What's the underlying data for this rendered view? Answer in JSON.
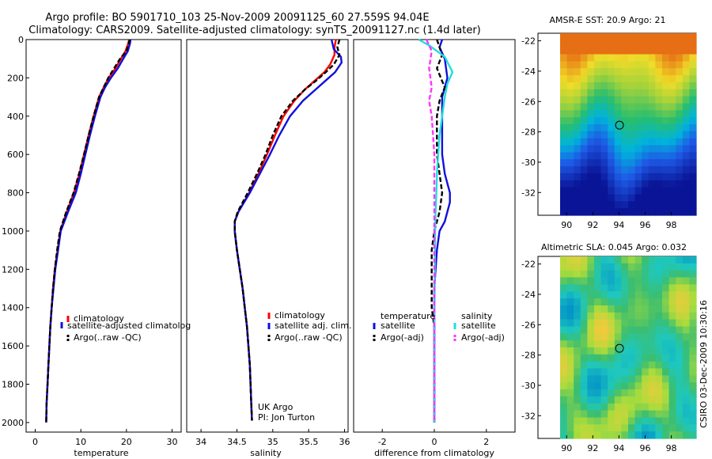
{
  "header": {
    "line1": "Argo profile: BO 5901710_103 25-Nov-2009 20091125_60 27.559S 94.04E",
    "line2": "Climatology: CARS2009. Satellite-adjusted climatology: synTS_20091127.nc (1.4d later)"
  },
  "side_credit": "CSIRO 03-Dec-2009 10:30:16",
  "colors": {
    "climatology": "#ff0000",
    "satellite": "#1010dd",
    "argo": "#000000",
    "argo_adj_sal": "#ff33ff",
    "satellite_sal": "#22dddd",
    "site_marker": "#000000"
  },
  "chart_data": [
    {
      "id": "temperature",
      "type": "line",
      "xlabel": "temperature",
      "ylabel": "",
      "xlim": [
        -2,
        32
      ],
      "ylim": [
        2050,
        0
      ],
      "y_reversed": true,
      "xticks": [
        0,
        10,
        20,
        30
      ],
      "yticks": [
        0,
        200,
        400,
        600,
        800,
        1000,
        1200,
        1400,
        1600,
        1800,
        2000
      ],
      "legend": [
        "climatology",
        "satellite-adjusted climatolog",
        "Argo(..raw -QC)"
      ],
      "series": [
        {
          "name": "climatology",
          "color": "#ff0000",
          "dash": "",
          "points": [
            [
              20.6,
              0
            ],
            [
              20.4,
              20
            ],
            [
              19.8,
              60
            ],
            [
              18.8,
              100
            ],
            [
              17.6,
              150
            ],
            [
              16.1,
              200
            ],
            [
              15,
              250
            ],
            [
              14,
              300
            ],
            [
              12.8,
              400
            ],
            [
              11.7,
              500
            ],
            [
              10.7,
              600
            ],
            [
              9.7,
              700
            ],
            [
              8.5,
              800
            ],
            [
              6.9,
              900
            ],
            [
              5.5,
              1000
            ],
            [
              4.9,
              1100
            ],
            [
              4.3,
              1200
            ],
            [
              3.9,
              1300
            ],
            [
              3.6,
              1400
            ],
            [
              3.3,
              1500
            ],
            [
              3.1,
              1600
            ],
            [
              2.9,
              1700
            ],
            [
              2.7,
              1800
            ],
            [
              2.5,
              1900
            ],
            [
              2.4,
              2000
            ]
          ]
        },
        {
          "name": "satellite-adjusted climatolog",
          "color": "#1010dd",
          "dash": "",
          "points": [
            [
              20.9,
              0
            ],
            [
              20.8,
              20
            ],
            [
              20.3,
              60
            ],
            [
              19.3,
              100
            ],
            [
              18.1,
              150
            ],
            [
              16.6,
              200
            ],
            [
              15.3,
              250
            ],
            [
              14.3,
              300
            ],
            [
              13.1,
              400
            ],
            [
              12,
              500
            ],
            [
              11,
              600
            ],
            [
              10,
              700
            ],
            [
              8.9,
              800
            ],
            [
              7.2,
              900
            ],
            [
              5.6,
              1000
            ],
            [
              5,
              1100
            ],
            [
              4.4,
              1200
            ],
            [
              4,
              1300
            ],
            [
              3.6,
              1400
            ],
            [
              3.3,
              1500
            ],
            [
              3.1,
              1600
            ],
            [
              2.9,
              1700
            ],
            [
              2.7,
              1800
            ],
            [
              2.5,
              1900
            ],
            [
              2.4,
              2000
            ]
          ]
        },
        {
          "name": "Argo(..raw -QC)",
          "color": "#000000",
          "dash": "6,3",
          "points": [
            [
              20.7,
              0
            ],
            [
              20.5,
              20
            ],
            [
              20,
              60
            ],
            [
              18.6,
              100
            ],
            [
              17.3,
              150
            ],
            [
              16,
              200
            ],
            [
              15,
              250
            ],
            [
              14,
              300
            ],
            [
              12.8,
              400
            ],
            [
              11.7,
              500
            ],
            [
              10.7,
              600
            ],
            [
              9.6,
              700
            ],
            [
              8.4,
              800
            ],
            [
              6.8,
              900
            ],
            [
              5.4,
              1000
            ],
            [
              4.8,
              1100
            ],
            [
              4.3,
              1200
            ],
            [
              3.9,
              1300
            ],
            [
              3.6,
              1400
            ],
            [
              3.3,
              1500
            ],
            [
              3.1,
              1600
            ],
            [
              2.9,
              1700
            ],
            [
              2.7,
              1800
            ],
            [
              2.5,
              1900
            ],
            [
              2.4,
              2000
            ]
          ]
        }
      ]
    },
    {
      "id": "salinity",
      "type": "line",
      "xlabel": "salinity",
      "xlim": [
        33.8,
        36.05
      ],
      "ylim": [
        2050,
        0
      ],
      "y_reversed": true,
      "xticks": [
        34,
        34.5,
        35,
        35.5,
        36
      ],
      "yticks": [],
      "legend": [
        "climatology",
        "satellite adj. clim.",
        "Argo(..raw -QC)"
      ],
      "annotation": [
        "UK Argo",
        "PI: Jon Turton"
      ],
      "series": [
        {
          "name": "climatology",
          "color": "#ff0000",
          "dash": "",
          "points": [
            [
              35.88,
              0
            ],
            [
              35.86,
              40
            ],
            [
              35.86,
              80
            ],
            [
              35.8,
              130
            ],
            [
              35.72,
              170
            ],
            [
              35.6,
              210
            ],
            [
              35.45,
              260
            ],
            [
              35.3,
              320
            ],
            [
              35.15,
              400
            ],
            [
              35.03,
              500
            ],
            [
              34.92,
              600
            ],
            [
              34.8,
              700
            ],
            [
              34.67,
              800
            ],
            [
              34.52,
              900
            ],
            [
              34.47,
              950
            ],
            [
              34.47,
              1000
            ],
            [
              34.5,
              1100
            ],
            [
              34.54,
              1200
            ],
            [
              34.58,
              1300
            ],
            [
              34.61,
              1400
            ],
            [
              34.64,
              1500
            ],
            [
              34.66,
              1600
            ],
            [
              34.68,
              1700
            ],
            [
              34.69,
              1800
            ],
            [
              34.7,
              1900
            ],
            [
              34.71,
              1990
            ]
          ]
        },
        {
          "name": "satellite adj. clim.",
          "color": "#1010dd",
          "dash": "",
          "points": [
            [
              35.82,
              0
            ],
            [
              35.85,
              50
            ],
            [
              35.95,
              90
            ],
            [
              35.96,
              120
            ],
            [
              35.87,
              170
            ],
            [
              35.75,
              210
            ],
            [
              35.6,
              260
            ],
            [
              35.42,
              320
            ],
            [
              35.24,
              400
            ],
            [
              35.09,
              500
            ],
            [
              34.96,
              600
            ],
            [
              34.82,
              700
            ],
            [
              34.68,
              800
            ],
            [
              34.52,
              900
            ],
            [
              34.47,
              950
            ],
            [
              34.47,
              1000
            ],
            [
              34.5,
              1100
            ],
            [
              34.54,
              1200
            ],
            [
              34.58,
              1300
            ],
            [
              34.61,
              1400
            ],
            [
              34.64,
              1500
            ],
            [
              34.66,
              1600
            ],
            [
              34.68,
              1700
            ],
            [
              34.69,
              1800
            ],
            [
              34.7,
              1900
            ],
            [
              34.71,
              1990
            ]
          ]
        },
        {
          "name": "Argo(..raw -QC)",
          "color": "#000000",
          "dash": "6,3",
          "points": [
            [
              35.93,
              0
            ],
            [
              35.9,
              40
            ],
            [
              35.93,
              80
            ],
            [
              35.85,
              130
            ],
            [
              35.74,
              170
            ],
            [
              35.62,
              210
            ],
            [
              35.45,
              260
            ],
            [
              35.28,
              320
            ],
            [
              35.12,
              400
            ],
            [
              35,
              500
            ],
            [
              34.9,
              600
            ],
            [
              34.78,
              700
            ],
            [
              34.65,
              800
            ],
            [
              34.51,
              900
            ],
            [
              34.47,
              950
            ],
            [
              34.47,
              1000
            ],
            [
              34.5,
              1100
            ],
            [
              34.54,
              1200
            ],
            [
              34.58,
              1300
            ],
            [
              34.61,
              1400
            ],
            [
              34.64,
              1500
            ],
            [
              34.66,
              1600
            ],
            [
              34.68,
              1700
            ],
            [
              34.69,
              1800
            ],
            [
              34.7,
              1900
            ],
            [
              34.71,
              1990
            ]
          ]
        }
      ]
    },
    {
      "id": "difference",
      "type": "line",
      "xlabel": "difference from climatology",
      "xlim": [
        -3.1,
        3.1
      ],
      "ylim": [
        2050,
        0
      ],
      "y_reversed": true,
      "xticks": [
        -2,
        0,
        2
      ],
      "yticks": [],
      "legend_heads": [
        "temperature",
        "salinity"
      ],
      "legend": [
        "satellite",
        "Argo(-adj)",
        "satellite",
        "Argo(-adj)"
      ],
      "series": [
        {
          "name": "satellite",
          "group": "temperature",
          "color": "#1010dd",
          "dash": "",
          "points": [
            [
              0.3,
              0
            ],
            [
              0.2,
              40
            ],
            [
              0.4,
              100
            ],
            [
              0.5,
              200
            ],
            [
              0.3,
              300
            ],
            [
              0.3,
              400
            ],
            [
              0.3,
              500
            ],
            [
              0.3,
              600
            ],
            [
              0.4,
              700
            ],
            [
              0.6,
              800
            ],
            [
              0.6,
              850
            ],
            [
              0.4,
              950
            ],
            [
              0.2,
              1000
            ],
            [
              0.1,
              1100
            ],
            [
              0.05,
              1200
            ],
            [
              0,
              1300
            ],
            [
              0,
              1500
            ],
            [
              0,
              2000
            ]
          ]
        },
        {
          "name": "Argo(-adj)",
          "group": "temperature",
          "color": "#000000",
          "dash": "6,3",
          "points": [
            [
              0.1,
              0
            ],
            [
              0.3,
              80
            ],
            [
              0.1,
              150
            ],
            [
              0.4,
              250
            ],
            [
              0.2,
              320
            ],
            [
              0.1,
              400
            ],
            [
              0.1,
              500
            ],
            [
              0.1,
              600
            ],
            [
              0.2,
              700
            ],
            [
              0.3,
              800
            ],
            [
              0.2,
              900
            ],
            [
              0,
              1000
            ],
            [
              -0.1,
              1100
            ],
            [
              -0.1,
              1200
            ],
            [
              -0.1,
              1400
            ],
            [
              0,
              1500
            ],
            [
              0,
              2000
            ]
          ]
        },
        {
          "name": "satellite",
          "group": "salinity",
          "color": "#22dddd",
          "dash": "",
          "points": [
            [
              -0.6,
              0
            ],
            [
              -0.2,
              30
            ],
            [
              0.4,
              90
            ],
            [
              0.7,
              170
            ],
            [
              0.5,
              230
            ],
            [
              0.4,
              300
            ],
            [
              0.3,
              400
            ],
            [
              0.2,
              500
            ],
            [
              0.15,
              600
            ],
            [
              0.1,
              700
            ],
            [
              0.08,
              800
            ],
            [
              0.05,
              900
            ],
            [
              0.03,
              1000
            ],
            [
              0.02,
              1200
            ],
            [
              0,
              1500
            ],
            [
              0,
              2000
            ]
          ]
        },
        {
          "name": "Argo(-adj)",
          "group": "salinity",
          "color": "#ff33ff",
          "dash": "6,3",
          "points": [
            [
              -0.3,
              0
            ],
            [
              -0.1,
              60
            ],
            [
              -0.2,
              150
            ],
            [
              -0.1,
              250
            ],
            [
              -0.2,
              320
            ],
            [
              -0.1,
              400
            ],
            [
              -0.05,
              500
            ],
            [
              0,
              600
            ],
            [
              0,
              800
            ],
            [
              0,
              1000
            ],
            [
              0,
              1200
            ],
            [
              0,
              1500
            ],
            [
              0,
              2000
            ]
          ]
        }
      ]
    },
    {
      "id": "sst_map",
      "type": "heatmap",
      "title": "AMSR-E SST: 20.9 Argo: 21",
      "xlim": [
        89.5,
        99.9
      ],
      "ylim": [
        -33.5,
        -21.5
      ],
      "xticks": [
        90,
        92,
        94,
        96,
        98
      ],
      "yticks": [
        -22,
        -24,
        -26,
        -28,
        -30,
        -32
      ],
      "marker": [
        94.04,
        -27.559
      ]
    },
    {
      "id": "sla_map",
      "type": "heatmap",
      "title": "Altimetric SLA: 0.045 Argo: 0.032",
      "xlim": [
        89.5,
        99.9
      ],
      "ylim": [
        -33.5,
        -21.5
      ],
      "xticks": [
        90,
        92,
        94,
        96,
        98
      ],
      "yticks": [
        -22,
        -24,
        -26,
        -28,
        -30,
        -32
      ],
      "marker": [
        94.04,
        -27.559
      ]
    }
  ]
}
